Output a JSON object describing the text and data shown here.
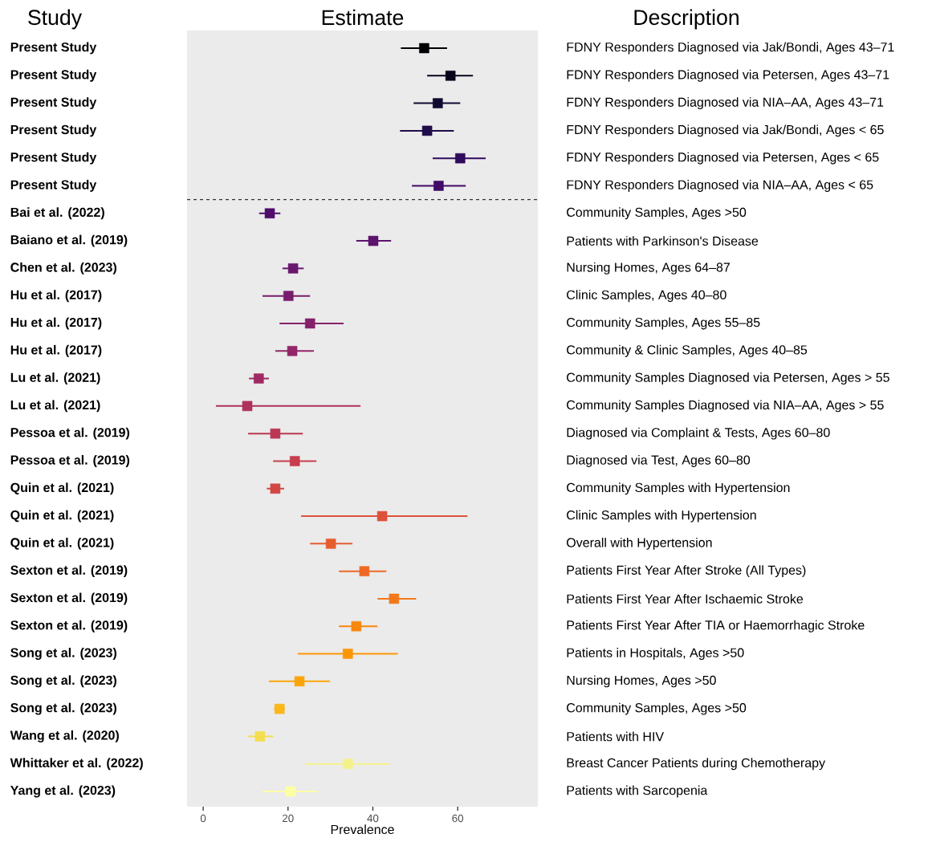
{
  "chart_data": {
    "type": "scatter",
    "orientation": "horizontal",
    "title": "Estimate",
    "ylabel": "Study",
    "y2label": "Description",
    "xlabel": "Prevalence",
    "marker": "square",
    "categories": [
      "Present Study",
      "Present Study",
      "Present Study",
      "Present Study",
      "Present Study",
      "Present Study",
      "Bai et al. (2022)",
      "Baiano et al. (2019)",
      "Chen et al. (2023)",
      "Hu et al. (2017)",
      "Hu et al. (2017)",
      "Hu et al. (2017)",
      "Lu et al. (2021)",
      "Lu et al. (2021)",
      "Pessoa et al. (2019)",
      "Pessoa et al. (2019)",
      "Quin et al. (2021)",
      "Quin et al. (2021)",
      "Quin et al. (2021)",
      "Sexton et al. (2019)",
      "Sexton et al. (2019)",
      "Sexton et al. (2019)",
      "Song et al. (2023)",
      "Song et al. (2023)",
      "Song et al. (2023)",
      "Wang et al. (2020)",
      "Whittaker et al. (2022)",
      "Yang et al. (2023)"
    ],
    "y2_categories": [
      "FDNY Responders Diagnosed via Jak/Bondi, Ages 43–71",
      "FDNY Responders Diagnosed via Petersen, Ages 43–71",
      "FDNY Responders Diagnosed via NIA–AA, Ages 43–71",
      "FDNY Responders Diagnosed via Jak/Bondi, Ages < 65",
      "FDNY Responders Diagnosed via Petersen, Ages < 65",
      "FDNY Responders Diagnosed via NIA–AA, Ages < 65",
      "Community Samples, Ages >50",
      "Patients with Parkinson's Disease",
      "Nursing Homes, Ages 64–87",
      "Clinic Samples, Ages 40–80",
      "Community Samples, Ages 55–85",
      "Community & Clinic Samples, Ages 40–85",
      "Community Samples Diagnosed via Petersen, Ages > 55",
      "Community Samples Diagnosed via NIA–AA, Ages > 55",
      "Diagnosed via Complaint & Tests, Ages 60–80",
      "Diagnosed via Test, Ages 60–80",
      "Community Samples with Hypertension",
      "Clinic Samples with Hypertension",
      "Overall with Hypertension",
      "Patients First Year After Stroke (All Types)",
      "Patients First Year After Ischaemic Stroke",
      "Patients First Year After TIA or Haemorrhagic Stroke",
      "Patients in Hospitals, Ages >50",
      "Nursing Homes, Ages >50",
      "Community Samples, Ages >50",
      "Patients with HIV",
      "Breast Cancer Patients during Chemotherapy",
      "Patients with Sarcopenia"
    ],
    "values": [
      52.1,
      58.3,
      55.3,
      52.8,
      60.6,
      55.5,
      15.7,
      40.1,
      21.2,
      20.1,
      25.2,
      21.0,
      13.1,
      10.4,
      17.0,
      21.6,
      17.0,
      42.2,
      30.1,
      38.0,
      45.0,
      36.1,
      34.1,
      22.7,
      18.0,
      13.4,
      34.1,
      20.6
    ],
    "errors": [
      [
        46.6,
        57.5
      ],
      [
        52.8,
        63.6
      ],
      [
        49.6,
        60.6
      ],
      [
        46.4,
        59.1
      ],
      [
        54.1,
        66.6
      ],
      [
        49.2,
        61.9
      ],
      [
        13.2,
        18.2
      ],
      [
        36.1,
        44.3
      ],
      [
        18.7,
        23.7
      ],
      [
        14.0,
        25.2
      ],
      [
        18.0,
        33.1
      ],
      [
        17.0,
        26.1
      ],
      [
        10.8,
        15.5
      ],
      [
        3.0,
        37.1
      ],
      [
        10.6,
        23.5
      ],
      [
        16.5,
        26.7
      ],
      [
        15.0,
        19.1
      ],
      [
        23.1,
        62.3
      ],
      [
        25.2,
        35.2
      ],
      [
        32.0,
        43.2
      ],
      [
        41.1,
        50.2
      ],
      [
        32.0,
        41.1
      ],
      [
        22.3,
        45.9
      ],
      [
        15.5,
        29.9
      ],
      [
        16.7,
        19.3
      ],
      [
        10.6,
        16.5
      ],
      [
        24.0,
        44.1
      ],
      [
        14.0,
        27.0
      ]
    ],
    "colors": [
      "#000004",
      "#07051b",
      "#110a30",
      "#1f0c48",
      "#300a5b",
      "#410a67",
      "#4f0d6c",
      "#5d126e",
      "#6a176e",
      "#781c6d",
      "#85216b",
      "#932667",
      "#a02a63",
      "#ae305c",
      "#bb3754",
      "#c73e4c",
      "#d24644",
      "#dd513a",
      "#e65d2f",
      "#ee6a24",
      "#f37819",
      "#f8870e",
      "#fb9706",
      "#fca50a",
      "#fbb61a",
      "#f4de4f",
      "#f3f28a",
      "#fcffa4"
    ],
    "xlim": [
      -3.8,
      78.9
    ],
    "xticks": [
      0,
      20,
      40,
      60
    ]
  }
}
